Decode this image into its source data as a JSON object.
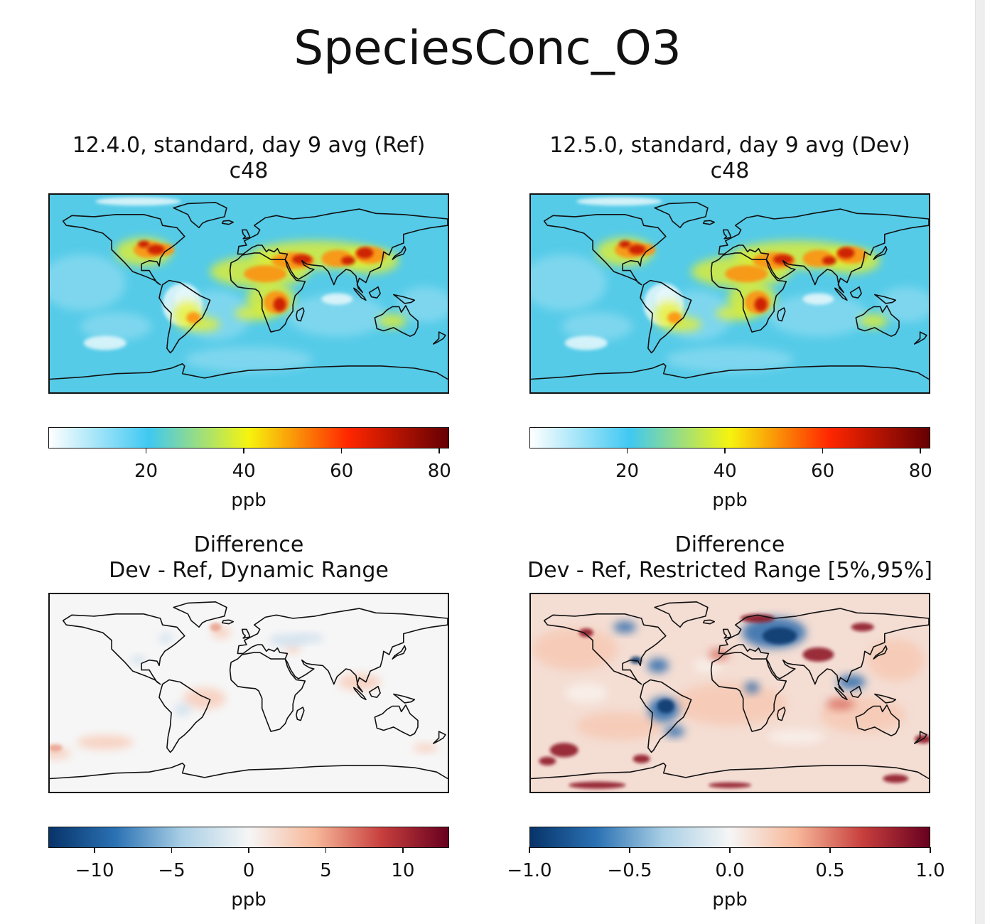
{
  "figure": {
    "title": "SpeciesConc_O3"
  },
  "chart_data": [
    {
      "type": "heatmap",
      "title_line1": "12.4.0, standard, day 9 avg (Ref)",
      "title_line2": "c48",
      "colormap": "WhGrYlRd",
      "cbar_range": [
        0,
        82
      ],
      "cbar_ticks": [
        "20",
        "40",
        "60",
        "80"
      ],
      "cbar_tick_values": [
        20,
        40,
        60,
        80
      ],
      "cbar_label": "ppb",
      "cmap_stops": [
        "#ffffff",
        "#3fc8f2",
        "#f6f40e",
        "#ff2600",
        "#650003"
      ]
    },
    {
      "type": "heatmap",
      "title_line1": "12.5.0, standard, day 9 avg (Dev)",
      "title_line2": "c48",
      "colormap": "WhGrYlRd",
      "cbar_range": [
        0,
        82
      ],
      "cbar_ticks": [
        "20",
        "40",
        "60",
        "80"
      ],
      "cbar_tick_values": [
        20,
        40,
        60,
        80
      ],
      "cbar_label": "ppb",
      "cmap_stops": [
        "#ffffff",
        "#3fc8f2",
        "#f6f40e",
        "#ff2600",
        "#650003"
      ]
    },
    {
      "type": "heatmap",
      "title_line1": "Difference",
      "title_line2": "Dev - Ref, Dynamic Range",
      "colormap": "RdBu_r",
      "cbar_range": [
        -13,
        13
      ],
      "cbar_ticks": [
        "−10",
        "−5",
        "0",
        "5",
        "10"
      ],
      "cbar_tick_values": [
        -10,
        -5,
        0,
        5,
        10
      ],
      "cbar_label": "ppb",
      "cmap_stops": [
        "#073369",
        "#2b72b4",
        "#a9cfe5",
        "#f6f6f6",
        "#f7b799",
        "#c73f3d",
        "#67001f"
      ]
    },
    {
      "type": "heatmap",
      "title_line1": "Difference",
      "title_line2": "Dev - Ref, Restricted Range [5%,95%]",
      "colormap": "RdBu_r",
      "cbar_range": [
        -1.0,
        1.0
      ],
      "cbar_ticks": [
        "−1.0",
        "−0.5",
        "0.0",
        "0.5",
        "1.0"
      ],
      "cbar_tick_values": [
        -1.0,
        -0.5,
        0.0,
        0.5,
        1.0
      ],
      "cbar_label": "ppb",
      "cmap_stops": [
        "#073369",
        "#2b72b4",
        "#a9cfe5",
        "#f6f6f6",
        "#f7b799",
        "#c73f3d",
        "#67001f"
      ]
    }
  ]
}
